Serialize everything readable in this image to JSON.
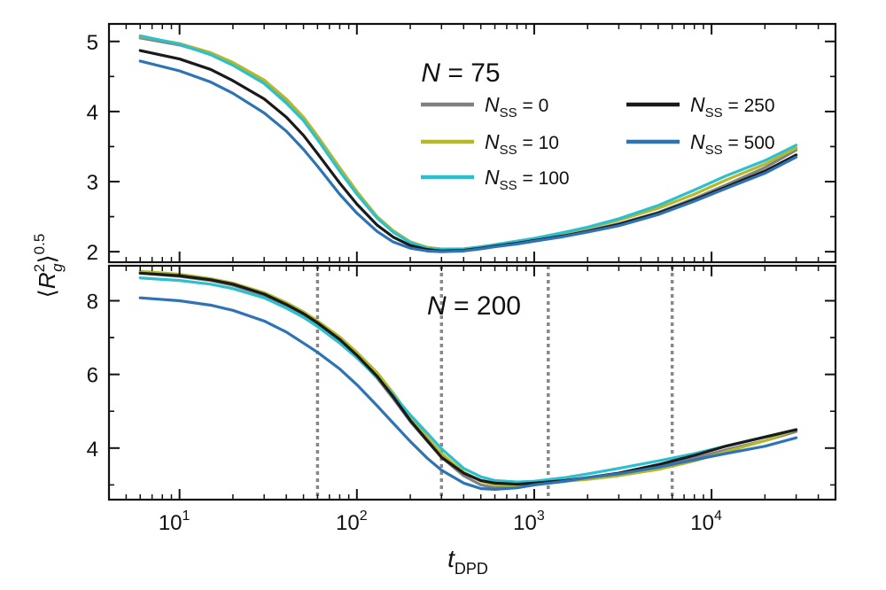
{
  "chart_data": {
    "type": "line",
    "xlabel": "t_DPD",
    "ylabel": "⟨R_g^2⟩^0.5",
    "xscale": "log",
    "xlim": [
      4,
      50000
    ],
    "x_ticks": [
      {
        "value": 10,
        "label": "10",
        "exp": "1"
      },
      {
        "value": 100,
        "label": "10",
        "exp": "2"
      },
      {
        "value": 1000,
        "label": "10",
        "exp": "3"
      },
      {
        "value": 10000,
        "label": "10",
        "exp": "4"
      }
    ],
    "legend_placement": "upper panel, top-right",
    "series_styles": [
      {
        "name": "N_SS = 0",
        "label_main": "N",
        "label_sub": "SS",
        "label_value": " = 0",
        "color": "#808080"
      },
      {
        "name": "N_SS = 10",
        "label_main": "N",
        "label_sub": "SS",
        "label_value": " = 10",
        "color": "#b5b829"
      },
      {
        "name": "N_SS = 100",
        "label_main": "N",
        "label_sub": "SS",
        "label_value": " = 100",
        "color": "#2cc0cf"
      },
      {
        "name": "N_SS = 250",
        "label_main": "N",
        "label_sub": "SS",
        "label_value": " = 250",
        "color": "#1a1a1a"
      },
      {
        "name": "N_SS = 500",
        "label_main": "N",
        "label_sub": "SS",
        "label_value": " = 500",
        "color": "#2e74b5"
      }
    ],
    "panels": [
      {
        "title": "N = 75",
        "title_var": "N",
        "title_value": " = 75",
        "ylim": [
          1.85,
          5.25
        ],
        "y_ticks": [
          2,
          3,
          4,
          5
        ],
        "vlines": [],
        "series": [
          {
            "name": "N_SS = 0",
            "x": [
              6,
              10,
              15,
              20,
              30,
              40,
              50,
              60,
              80,
              100,
              130,
              160,
              200,
              250,
              300,
              400,
              500,
              600,
              800,
              1000,
              1500,
              2000,
              3000,
              5000,
              8000,
              12000,
              20000,
              30000
            ],
            "y": [
              5.05,
              4.95,
              4.82,
              4.68,
              4.42,
              4.15,
              3.9,
              3.62,
              3.18,
              2.85,
              2.5,
              2.3,
              2.14,
              2.06,
              2.03,
              2.03,
              2.06,
              2.09,
              2.13,
              2.17,
              2.24,
              2.3,
              2.4,
              2.56,
              2.76,
              2.95,
              3.2,
              3.45
            ]
          },
          {
            "name": "N_SS = 10",
            "x": [
              6,
              10,
              15,
              20,
              30,
              40,
              50,
              60,
              80,
              100,
              130,
              160,
              200,
              250,
              300,
              400,
              500,
              600,
              800,
              1000,
              1500,
              2000,
              3000,
              5000,
              8000,
              12000,
              20000,
              30000
            ],
            "y": [
              5.07,
              4.97,
              4.84,
              4.7,
              4.45,
              4.18,
              3.92,
              3.65,
              3.2,
              2.86,
              2.5,
              2.3,
              2.14,
              2.06,
              2.04,
              2.04,
              2.07,
              2.1,
              2.15,
              2.19,
              2.27,
              2.34,
              2.45,
              2.62,
              2.82,
              3.02,
              3.25,
              3.48
            ]
          },
          {
            "name": "N_SS = 100",
            "x": [
              6,
              10,
              15,
              20,
              30,
              40,
              50,
              60,
              80,
              100,
              130,
              160,
              200,
              250,
              300,
              400,
              500,
              600,
              800,
              1000,
              1500,
              2000,
              3000,
              5000,
              8000,
              12000,
              20000,
              30000
            ],
            "y": [
              5.08,
              4.96,
              4.81,
              4.66,
              4.4,
              4.12,
              3.87,
              3.6,
              3.15,
              2.82,
              2.48,
              2.28,
              2.13,
              2.05,
              2.03,
              2.04,
              2.07,
              2.1,
              2.15,
              2.19,
              2.28,
              2.35,
              2.47,
              2.66,
              2.88,
              3.08,
              3.3,
              3.52
            ]
          },
          {
            "name": "N_SS = 250",
            "x": [
              6,
              10,
              15,
              20,
              30,
              40,
              50,
              60,
              80,
              100,
              130,
              160,
              200,
              250,
              300,
              400,
              500,
              600,
              800,
              1000,
              1500,
              2000,
              3000,
              5000,
              8000,
              12000,
              20000,
              30000
            ],
            "y": [
              4.87,
              4.75,
              4.6,
              4.44,
              4.18,
              3.92,
              3.66,
              3.4,
              2.98,
              2.68,
              2.38,
              2.21,
              2.09,
              2.03,
              2.01,
              2.02,
              2.05,
              2.08,
              2.12,
              2.16,
              2.23,
              2.29,
              2.39,
              2.55,
              2.74,
              2.92,
              3.15,
              3.38
            ]
          },
          {
            "name": "N_SS = 500",
            "x": [
              6,
              10,
              15,
              20,
              30,
              40,
              50,
              60,
              80,
              100,
              130,
              160,
              200,
              250,
              300,
              400,
              500,
              600,
              800,
              1000,
              1500,
              2000,
              3000,
              5000,
              8000,
              12000,
              20000,
              30000
            ],
            "y": [
              4.72,
              4.58,
              4.42,
              4.26,
              3.98,
              3.72,
              3.46,
              3.22,
              2.82,
              2.55,
              2.29,
              2.14,
              2.05,
              2.01,
              2.0,
              2.01,
              2.04,
              2.07,
              2.11,
              2.15,
              2.22,
              2.28,
              2.37,
              2.53,
              2.72,
              2.9,
              3.12,
              3.35
            ]
          }
        ]
      },
      {
        "title": "N = 200",
        "title_var": "N",
        "title_value": " = 200",
        "ylim": [
          2.6,
          8.95
        ],
        "y_ticks": [
          4,
          6,
          8
        ],
        "vlines": [
          60,
          300,
          1200,
          6000
        ],
        "series": [
          {
            "name": "N_SS = 0",
            "x": [
              6,
              10,
              15,
              20,
              30,
              40,
              50,
              60,
              80,
              100,
              130,
              160,
              200,
              250,
              300,
              400,
              500,
              600,
              800,
              1000,
              1500,
              2000,
              3000,
              5000,
              8000,
              12000,
              20000,
              30000
            ],
            "y": [
              8.75,
              8.66,
              8.55,
              8.42,
              8.15,
              7.85,
              7.6,
              7.35,
              6.9,
              6.48,
              5.9,
              5.35,
              4.72,
              4.18,
              3.75,
              3.25,
              3.0,
              2.92,
              2.95,
              3.02,
              3.1,
              3.18,
              3.3,
              3.5,
              3.72,
              3.95,
              4.2,
              4.45
            ]
          },
          {
            "name": "N_SS = 10",
            "x": [
              6,
              10,
              15,
              20,
              30,
              40,
              50,
              60,
              80,
              100,
              130,
              160,
              200,
              250,
              300,
              400,
              500,
              600,
              800,
              1000,
              1500,
              2000,
              3000,
              5000,
              8000,
              12000,
              20000,
              30000
            ],
            "y": [
              8.8,
              8.72,
              8.6,
              8.48,
              8.22,
              7.95,
              7.7,
              7.45,
              7.02,
              6.6,
              6.05,
              5.5,
              4.85,
              4.28,
              3.85,
              3.35,
              3.1,
              3.0,
              2.98,
              3.02,
              3.1,
              3.15,
              3.25,
              3.42,
              3.65,
              3.9,
              4.2,
              4.5
            ]
          },
          {
            "name": "N_SS = 100",
            "x": [
              6,
              10,
              15,
              20,
              30,
              40,
              50,
              60,
              80,
              100,
              130,
              160,
              200,
              250,
              300,
              400,
              500,
              600,
              800,
              1000,
              1500,
              2000,
              3000,
              5000,
              8000,
              12000,
              20000,
              30000
            ],
            "y": [
              8.62,
              8.55,
              8.45,
              8.33,
              8.08,
              7.8,
              7.55,
              7.3,
              6.85,
              6.45,
              5.92,
              5.45,
              4.9,
              4.4,
              3.98,
              3.45,
              3.22,
              3.12,
              3.08,
              3.1,
              3.2,
              3.3,
              3.45,
              3.65,
              3.85,
              4.05,
              4.3,
              4.5
            ]
          },
          {
            "name": "N_SS = 250",
            "x": [
              6,
              10,
              15,
              20,
              30,
              40,
              50,
              60,
              80,
              100,
              130,
              160,
              200,
              250,
              300,
              400,
              500,
              600,
              800,
              1000,
              1500,
              2000,
              3000,
              5000,
              8000,
              12000,
              20000,
              30000
            ],
            "y": [
              8.75,
              8.68,
              8.57,
              8.45,
              8.18,
              7.9,
              7.65,
              7.4,
              6.95,
              6.52,
              5.95,
              5.4,
              4.75,
              4.2,
              3.75,
              3.32,
              3.12,
              3.05,
              3.02,
              3.05,
              3.12,
              3.2,
              3.32,
              3.55,
              3.8,
              4.05,
              4.3,
              4.5
            ]
          },
          {
            "name": "N_SS = 500",
            "x": [
              6,
              10,
              15,
              20,
              30,
              40,
              50,
              60,
              80,
              100,
              130,
              160,
              200,
              250,
              300,
              400,
              500,
              600,
              800,
              1000,
              1500,
              2000,
              3000,
              5000,
              8000,
              12000,
              20000,
              30000
            ],
            "y": [
              8.08,
              8.0,
              7.88,
              7.74,
              7.45,
              7.15,
              6.85,
              6.6,
              6.15,
              5.72,
              5.15,
              4.68,
              4.18,
              3.72,
              3.4,
              3.05,
              2.9,
              2.88,
              2.92,
              3.0,
              3.1,
              3.2,
              3.3,
              3.48,
              3.68,
              3.85,
              4.05,
              4.28
            ]
          }
        ]
      }
    ]
  }
}
